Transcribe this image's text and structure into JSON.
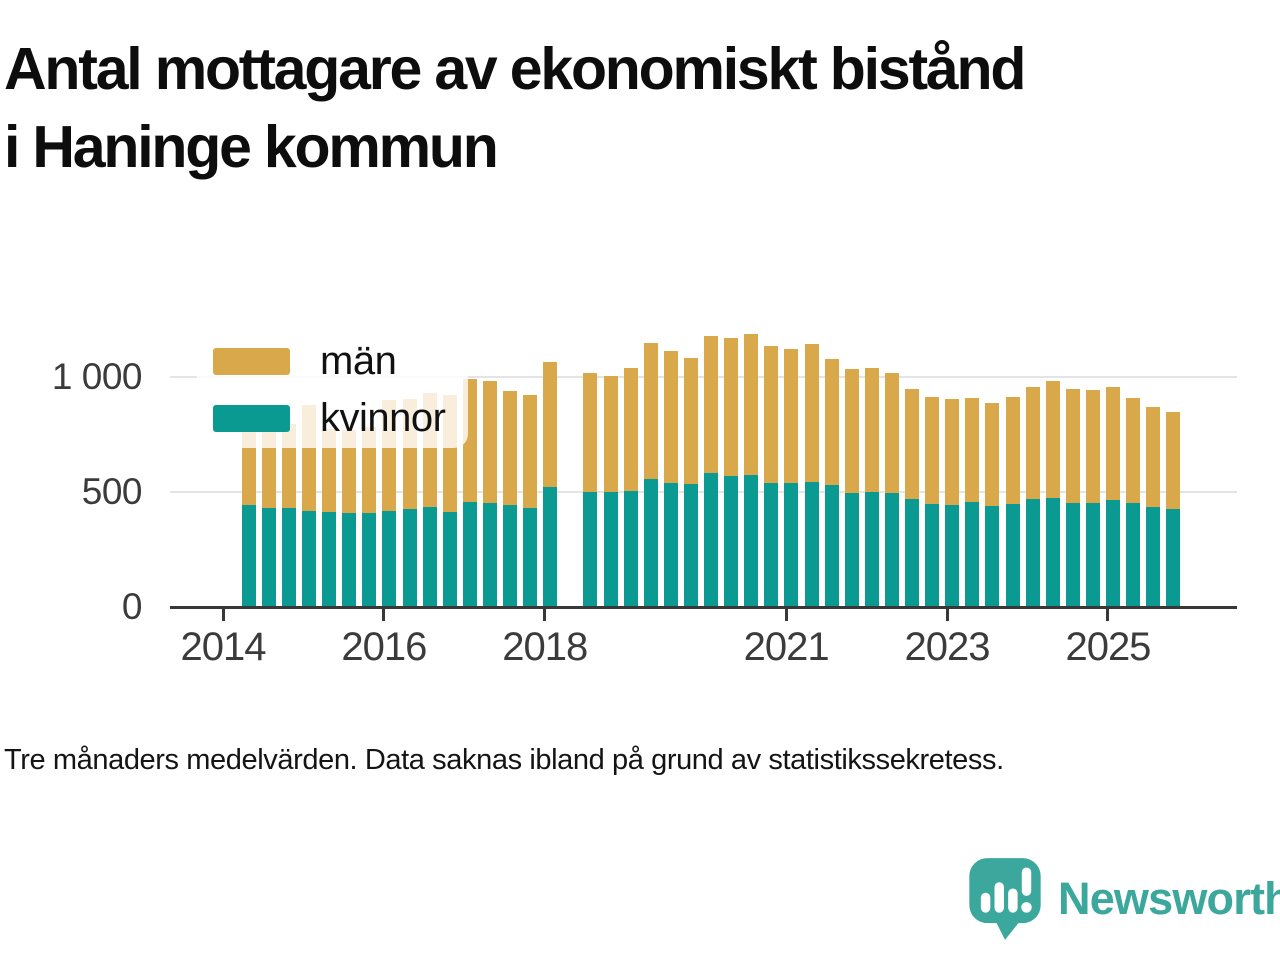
{
  "title": {
    "line1": "Antal mottagare av ekonomiskt bistånd",
    "line2": "i Haninge kommun"
  },
  "legend": {
    "items": [
      {
        "label": "män",
        "color": "#d9a84b"
      },
      {
        "label": "kvinnor",
        "color": "#0b9a91"
      }
    ]
  },
  "footnote": {
    "text": "Tre månaders medelvärden. Data saknas ibland på grund av statistikssekretess."
  },
  "logo": {
    "brand": "Newsworthy",
    "color": "#3ca79c"
  },
  "chart_data": {
    "type": "bar",
    "stacked": true,
    "title": "Antal mottagare av ekonomiskt bistånd i Haninge kommun",
    "xlabel": "",
    "ylabel": "",
    "ylim": [
      0,
      1250
    ],
    "grid": "horizontal",
    "legend_position": "top-left-overlay",
    "note": "null values = missing data (statistikssekretess)",
    "y_ticks": [
      0,
      500,
      1000
    ],
    "y_tick_labels": [
      "0",
      "500",
      "1 000"
    ],
    "x_tick_years": [
      2014,
      2016,
      2018,
      2021,
      2023,
      2025
    ],
    "x_tick_labels": [
      "2014",
      "2016",
      "2018",
      "2021",
      "2023",
      "2025"
    ],
    "categories": [
      "2014 Q2",
      "2014 Q3",
      "2014 Q4",
      "2015 Q1",
      "2015 Q2",
      "2015 Q3",
      "2015 Q4",
      "2016 Q1",
      "2016 Q2",
      "2016 Q3",
      "2016 Q4",
      "2017 Q1",
      "2017 Q2",
      "2017 Q3",
      "2017 Q4",
      "2018 Q1",
      "2018 Q2",
      "2018 Q3",
      "2018 Q4",
      "2019 Q1",
      "2019 Q2",
      "2019 Q3",
      "2019 Q4",
      "2020 Q1",
      "2020 Q2",
      "2020 Q3",
      "2020 Q4",
      "2021 Q1",
      "2021 Q2",
      "2021 Q3",
      "2021 Q4",
      "2022 Q1",
      "2022 Q2",
      "2022 Q3",
      "2022 Q4",
      "2023 Q1",
      "2023 Q2",
      "2023 Q3",
      "2023 Q4",
      "2024 Q1",
      "2024 Q2",
      "2024 Q3",
      "2024 Q4",
      "2025 Q1",
      "2025 Q2",
      "2025 Q3",
      "2025 Q4"
    ],
    "series": [
      {
        "name": "kvinnor",
        "color": "#0b9a91",
        "values": [
          445,
          430,
          430,
          416,
          413,
          409,
          408,
          419,
          426,
          434,
          415,
          458,
          452,
          444,
          433,
          523,
          null,
          500,
          500,
          506,
          557,
          539,
          534,
          583,
          571,
          574,
          542,
          542,
          545,
          531,
          496,
          499,
          496,
          470,
          449,
          444,
          458,
          438,
          447,
          470,
          473,
          455,
          455,
          466,
          455,
          436,
          429
        ]
      },
      {
        "name": "män",
        "color": "#d9a84b",
        "values": [
          345,
          360,
          365,
          464,
          362,
          361,
          377,
          481,
          479,
          496,
          510,
          537,
          533,
          496,
          492,
          542,
          null,
          520,
          505,
          534,
          593,
          576,
          551,
          597,
          599,
          616,
          593,
          583,
          600,
          549,
          539,
          541,
          524,
          480,
          466,
          461,
          452,
          452,
          468,
          490,
          512,
          495,
          490,
          494,
          455,
          434,
          421
        ]
      }
    ]
  }
}
